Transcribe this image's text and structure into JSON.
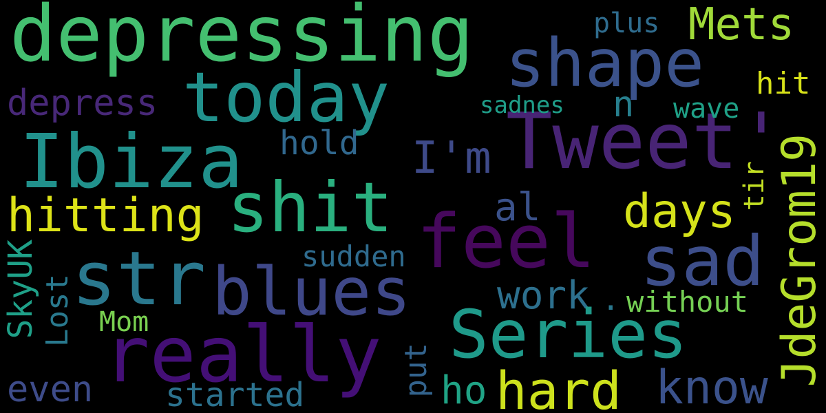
{
  "words": [
    {
      "text": "depressing",
      "color": "#44bf70"
    },
    {
      "text": "shape",
      "color": "#3b528b"
    },
    {
      "text": "today",
      "color": "#21918c"
    },
    {
      "text": "Mets",
      "color": "#a0da39"
    },
    {
      "text": "plus",
      "color": "#2f6c8e"
    },
    {
      "text": "Tweet'",
      "color": "#482475"
    },
    {
      "text": "Ibiza",
      "color": "#21918c"
    },
    {
      "text": "depress",
      "color": "#482878"
    },
    {
      "text": "sadnes",
      "color": "#1f9e89"
    },
    {
      "text": "n",
      "color": "#277f8e"
    },
    {
      "text": "wave",
      "color": "#1fa187"
    },
    {
      "text": "hit",
      "color": "#d8e219"
    },
    {
      "text": "hold",
      "color": "#31688e"
    },
    {
      "text": "I'm",
      "color": "#3e4a89"
    },
    {
      "text": "shit",
      "color": "#2ab07f"
    },
    {
      "text": "hitting",
      "color": "#dde318"
    },
    {
      "text": "days",
      "color": "#d5e21a"
    },
    {
      "text": "al",
      "color": "#3b528b"
    },
    {
      "text": "tir",
      "color": "#c2df23"
    },
    {
      "text": "feel",
      "color": "#46085c"
    },
    {
      "text": "JdeGrom19",
      "color": "#b5de2b"
    },
    {
      "text": "sad",
      "color": "#3d4e8a"
    },
    {
      "text": "str",
      "color": "#2a788e"
    },
    {
      "text": "blues",
      "color": "#3f4889"
    },
    {
      "text": "sudden",
      "color": "#2f6b8e"
    },
    {
      "text": "SkyUK",
      "color": "#1fa088"
    },
    {
      "text": "Lost",
      "color": "#29798e"
    },
    {
      "text": "work",
      "color": "#2d708e"
    },
    {
      "text": ".",
      "color": "#2a788e"
    },
    {
      "text": "without",
      "color": "#75d054"
    },
    {
      "text": "Series",
      "color": "#1f9a8a"
    },
    {
      "text": "Mom",
      "color": "#7ad151"
    },
    {
      "text": "really",
      "color": "#440f76"
    },
    {
      "text": "put",
      "color": "#33638d"
    },
    {
      "text": "even",
      "color": "#3e4c8a"
    },
    {
      "text": "hard",
      "color": "#cde11d"
    },
    {
      "text": "know",
      "color": "#3b528b"
    },
    {
      "text": "ho",
      "color": "#20a486"
    },
    {
      "text": "started",
      "color": "#2c728e"
    }
  ]
}
